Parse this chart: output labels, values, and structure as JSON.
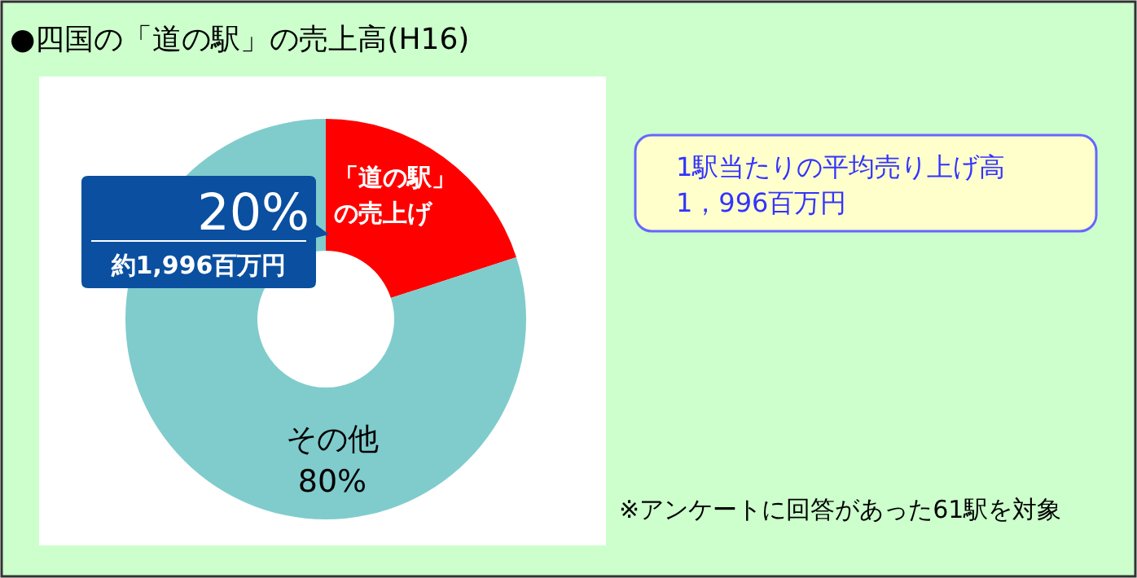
{
  "chart_data": {
    "type": "donut",
    "title": "●四国の「道の駅」の売上高(H16)",
    "categories": [
      "「道の駅」の売上げ",
      "その他"
    ],
    "values": [
      20,
      80
    ],
    "colors": [
      "#ff0000",
      "#80cccc"
    ],
    "value_labels": [
      "20%",
      "80%"
    ],
    "annotations": [
      "約1,996百万円",
      "1駅当たりの平均売り上げ高\n1，996百万円",
      "※アンケートに回答があった61駅を対象"
    ]
  }
}
